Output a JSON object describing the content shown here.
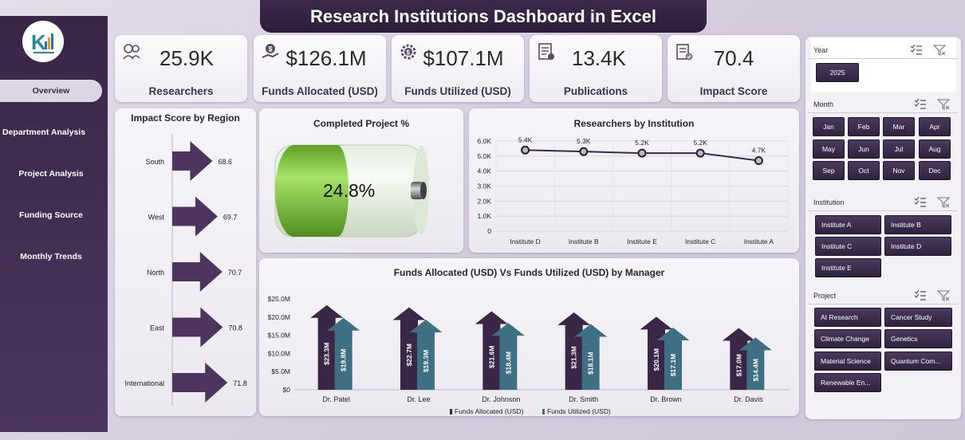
{
  "title": "Research Institutions Dashboard in Excel",
  "nav": [
    {
      "label": "Overview",
      "active": true
    },
    {
      "label": "Department Analysis"
    },
    {
      "label": "Project Analysis"
    },
    {
      "label": "Funding Source"
    },
    {
      "label": "Monthly Trends"
    }
  ],
  "kpis": [
    {
      "value": "25.9K",
      "label": "Researchers",
      "icon": "researchers-icon"
    },
    {
      "value": "$126.1M",
      "label": "Funds Allocated (USD)",
      "icon": "funds-allocated-icon"
    },
    {
      "value": "$107.1M",
      "label": "Funds Utilized (USD)",
      "icon": "funds-utilized-icon"
    },
    {
      "value": "13.4K",
      "label": "Publications",
      "icon": "publications-icon"
    },
    {
      "value": "70.4",
      "label": "Impact Score",
      "icon": "impact-score-icon"
    }
  ],
  "impact_panel": {
    "title": "Impact Score by Region"
  },
  "completed_panel": {
    "title": "Completed Project %",
    "value": "24.8%"
  },
  "researchers_panel": {
    "title": "Researchers by Institution"
  },
  "funds_panel": {
    "title": "Funds Allocated (USD) Vs Funds Utilized (USD) by Manager"
  },
  "colors": {
    "dark": "#3a2747",
    "arrow": "#4d3560",
    "teal": "#3f6f83",
    "green": "#7ec63c"
  },
  "chart_data": [
    {
      "type": "bar",
      "title": "Impact Score by Region",
      "orientation": "horizontal",
      "categories": [
        "South",
        "West",
        "North",
        "East",
        "International"
      ],
      "values": [
        68.6,
        69.7,
        70.7,
        70.8,
        71.8
      ],
      "value_labels": [
        "68.6",
        "69.7",
        "70.7",
        "70.8",
        "71.8"
      ]
    },
    {
      "type": "gauge",
      "title": "Completed Project %",
      "value": 24.8,
      "label": "24.8%"
    },
    {
      "type": "line",
      "title": "Researchers by Institution",
      "categories": [
        "Institute D",
        "Institute B",
        "Institute E",
        "Institute C",
        "Institute A"
      ],
      "values": [
        5400,
        5300,
        5200,
        5200,
        4700
      ],
      "value_labels": [
        "5.4K",
        "5.3K",
        "5.2K",
        "5.2K",
        "4.7K"
      ],
      "ylim": [
        0,
        6000
      ],
      "yticks": [
        "0",
        "1.0K",
        "2.0K",
        "3.0K",
        "4.0K",
        "5.0K",
        "6.0K"
      ]
    },
    {
      "type": "bar",
      "title": "Funds Allocated (USD) Vs Funds Utilized (USD) by Manager",
      "categories": [
        "Dr. Patel",
        "Dr. Lee",
        "Dr. Johnson",
        "Dr. Smith",
        "Dr. Brown",
        "Dr. Davis"
      ],
      "series": [
        {
          "name": "Funds Allocated (USD)",
          "values": [
            23.3,
            22.7,
            21.6,
            21.3,
            20.1,
            17.0
          ],
          "labels": [
            "$23.3M",
            "$22.7M",
            "$21.6M",
            "$21.3M",
            "$20.1M",
            "$17.0M"
          ]
        },
        {
          "name": "Funds Utilized (USD)",
          "values": [
            19.8,
            19.3,
            18.4,
            18.1,
            17.1,
            14.4
          ],
          "labels": [
            "$19.8M",
            "$19.3M",
            "$18.4M",
            "$18.1M",
            "$17.1M",
            "$14.4M"
          ]
        }
      ],
      "ylim": [
        0,
        25
      ],
      "yticks": [
        "$0",
        "$5.0M",
        "$10.0M",
        "$15.0M",
        "$20.0M",
        "$25.0M"
      ]
    }
  ],
  "slicers": {
    "year": {
      "title": "Year",
      "items": [
        "2025"
      ]
    },
    "month": {
      "title": "Month",
      "items": [
        "Jan",
        "Feb",
        "Mar",
        "Apr",
        "May",
        "Jun",
        "Jul",
        "Aug",
        "Sep",
        "Oct",
        "Nov",
        "Dec"
      ]
    },
    "institution": {
      "title": "Institution",
      "items": [
        "Institute A",
        "Institute B",
        "Institute C",
        "Institute D",
        "Institute E"
      ]
    },
    "project": {
      "title": "Project",
      "items": [
        "AI Research",
        "Cancer Study",
        "Climate Change",
        "Genetics",
        "Material Science",
        "Quantum Com...",
        "Renewable En..."
      ]
    }
  }
}
